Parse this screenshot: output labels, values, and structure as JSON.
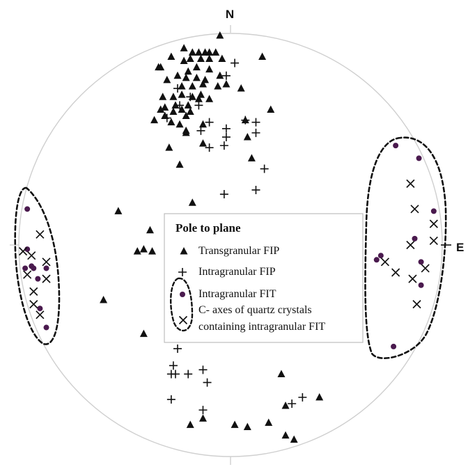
{
  "figure": {
    "north_label": "N",
    "east_label": "E",
    "colors": {
      "circle": "#cfcfcf",
      "ink": "#111111",
      "fit_dot": "#4a1a4e",
      "legend_border": "#bdbdbd"
    }
  },
  "legend": {
    "title": "Pole to plane",
    "items": [
      {
        "symbol": "triangle",
        "label": "Transgranular FIP"
      },
      {
        "symbol": "plus",
        "label": "Intragranular FIP"
      },
      {
        "symbol": "dot",
        "label": "Intragranular FIT"
      },
      {
        "symbol": "cross",
        "label_line1": "C- axes of quartz crystals",
        "label_line2": "containing intragranular FIT"
      }
    ]
  },
  "chart_data": {
    "type": "scatter",
    "series": [
      {
        "name": "Transgranular FIP",
        "symbol": "triangle",
        "points": []
      },
      {
        "name": "Intragranular FIP",
        "symbol": "plus",
        "points": []
      },
      {
        "name": "Intragranular FIT",
        "symbol": "dot",
        "points": []
      },
      {
        "name": "C- axes of quartz crystals containing intragranular FIT",
        "symbol": "cross",
        "points": []
      }
    ]
  }
}
